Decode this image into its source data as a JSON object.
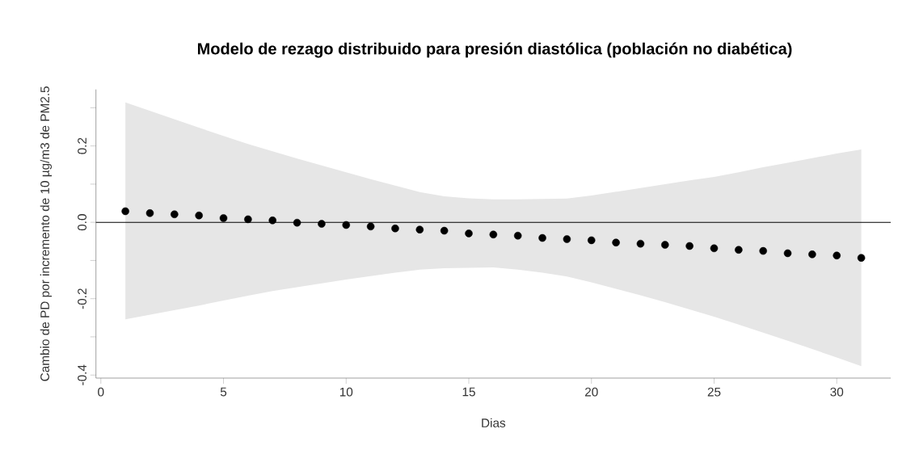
{
  "chart_data": {
    "type": "scatter",
    "title": "Modelo de rezago distribuido para presión diastólica (población no diabética)",
    "xlabel": "Dias",
    "ylabel": "Cambio de PD por incremento de 10 µg/m3 de PM2.5",
    "xlim": [
      -0.2,
      32.2
    ],
    "ylim": [
      -0.408,
      0.348
    ],
    "xticks": [
      0,
      5,
      10,
      15,
      20,
      25,
      30
    ],
    "yticks": [
      {
        "value": -0.4,
        "label": "-0.4"
      },
      {
        "value": -0.3,
        "label": null
      },
      {
        "value": -0.2,
        "label": "-0.2"
      },
      {
        "value": -0.1,
        "label": null
      },
      {
        "value": 0,
        "label": "0.0"
      },
      {
        "value": 0.1,
        "label": null
      },
      {
        "value": 0.2,
        "label": "0.2"
      },
      {
        "value": 0.3,
        "label": null
      }
    ],
    "marker": "circle",
    "grid": false,
    "ref_lines": [
      {
        "axis": "y",
        "value": 0,
        "color": "#000000"
      }
    ],
    "series": [
      {
        "color": "#000000",
        "x": [
          1,
          2,
          3,
          4,
          5,
          6,
          7,
          8,
          9,
          10,
          11,
          12,
          13,
          14,
          15,
          16,
          17,
          18,
          19,
          20,
          21,
          22,
          23,
          24,
          25,
          26,
          27,
          28,
          29,
          30,
          31
        ],
        "values": [
          0.029,
          0.024,
          0.021,
          0.018,
          0.011,
          0.008,
          0.005,
          -0.001,
          -0.004,
          -0.007,
          -0.011,
          -0.016,
          -0.019,
          -0.022,
          -0.029,
          -0.032,
          -0.035,
          -0.041,
          -0.044,
          -0.047,
          -0.053,
          -0.056,
          -0.059,
          -0.062,
          -0.068,
          -0.072,
          -0.075,
          -0.081,
          -0.084,
          -0.087,
          -0.093
        ],
        "lower": [
          -0.254,
          -0.242,
          -0.23,
          -0.218,
          -0.205,
          -0.192,
          -0.18,
          -0.17,
          -0.16,
          -0.15,
          -0.141,
          -0.132,
          -0.124,
          -0.12,
          -0.119,
          -0.118,
          -0.124,
          -0.132,
          -0.142,
          -0.157,
          -0.174,
          -0.191,
          -0.209,
          -0.228,
          -0.247,
          -0.268,
          -0.289,
          -0.31,
          -0.332,
          -0.354,
          -0.377
        ],
        "upper": [
          0.314,
          0.292,
          0.27,
          0.248,
          0.226,
          0.205,
          0.186,
          0.167,
          0.149,
          0.131,
          0.113,
          0.096,
          0.079,
          0.068,
          0.063,
          0.06,
          0.06,
          0.061,
          0.062,
          0.07,
          0.08,
          0.09,
          0.1,
          0.11,
          0.119,
          0.131,
          0.144,
          0.156,
          0.168,
          0.18,
          0.191
        ]
      }
    ]
  }
}
